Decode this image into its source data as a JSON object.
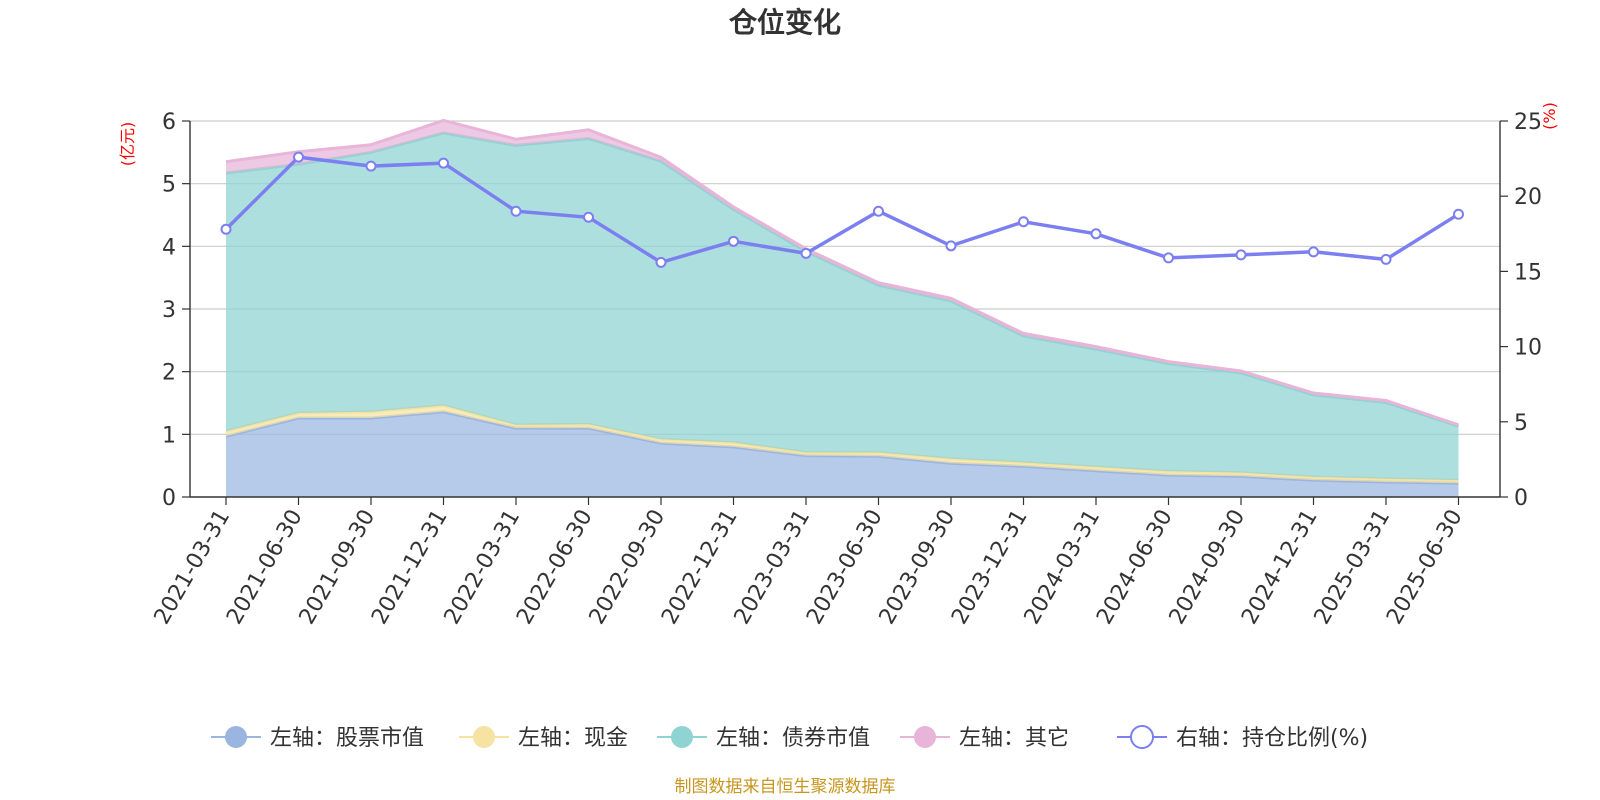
{
  "chart_data": {
    "type": "area",
    "title": "仓位变化",
    "left_axis": {
      "unit": "(亿元)",
      "ylim": [
        0,
        6
      ],
      "ticks": [
        "0",
        "1",
        "2",
        "3",
        "4",
        "5",
        "6"
      ]
    },
    "right_axis": {
      "unit": "(%)",
      "ylim": [
        0,
        25
      ],
      "ticks": [
        "0",
        "5",
        "10",
        "15",
        "20",
        "25"
      ]
    },
    "categories": [
      "2021-03-31",
      "2021-06-30",
      "2021-09-30",
      "2021-12-31",
      "2022-03-31",
      "2022-06-30",
      "2022-09-30",
      "2022-12-31",
      "2023-03-31",
      "2023-06-30",
      "2023-09-30",
      "2023-12-31",
      "2024-03-31",
      "2024-06-30",
      "2024-09-30",
      "2024-12-31",
      "2025-03-31",
      "2025-06-30"
    ],
    "series": [
      {
        "name": "左轴：股票市值",
        "axis": "left",
        "kind": "stacked-area",
        "color": "#9ab5e0",
        "values": [
          0.97,
          1.26,
          1.26,
          1.36,
          1.1,
          1.1,
          0.86,
          0.8,
          0.66,
          0.65,
          0.54,
          0.49,
          0.42,
          0.35,
          0.33,
          0.27,
          0.24,
          0.22
        ]
      },
      {
        "name": "左轴：现金",
        "axis": "left",
        "kind": "stacked-area",
        "color": "#f6e3a1",
        "values": [
          0.08,
          0.08,
          0.1,
          0.1,
          0.05,
          0.06,
          0.06,
          0.07,
          0.05,
          0.06,
          0.07,
          0.06,
          0.06,
          0.06,
          0.06,
          0.05,
          0.05,
          0.05
        ]
      },
      {
        "name": "左轴：债券市值",
        "axis": "left",
        "kind": "stacked-area",
        "color": "#8fd3d3",
        "values": [
          4.12,
          3.97,
          4.14,
          4.35,
          4.46,
          4.56,
          4.44,
          3.72,
          3.21,
          2.67,
          2.52,
          2.02,
          1.88,
          1.72,
          1.59,
          1.31,
          1.22,
          0.86
        ]
      },
      {
        "name": "左轴：其它",
        "axis": "left",
        "kind": "stacked-area",
        "color": "#e8b4d8",
        "values": [
          0.18,
          0.2,
          0.12,
          0.2,
          0.1,
          0.14,
          0.06,
          0.04,
          0.04,
          0.04,
          0.04,
          0.04,
          0.04,
          0.03,
          0.03,
          0.03,
          0.03,
          0.02
        ]
      },
      {
        "name": "右轴：持仓比例(%)",
        "axis": "right",
        "kind": "line",
        "color": "#7b7ff0",
        "values": [
          17.8,
          22.6,
          22.0,
          22.2,
          19.0,
          18.6,
          15.6,
          17.0,
          16.2,
          19.0,
          16.7,
          18.3,
          17.5,
          15.9,
          16.1,
          16.3,
          15.8,
          18.8
        ]
      }
    ],
    "legend_position": "bottom-center",
    "grid": true
  },
  "source_note": "制图数据来自恒生聚源数据库"
}
